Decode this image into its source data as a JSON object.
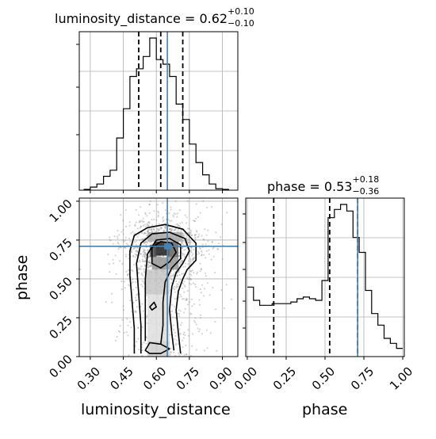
{
  "chart_data": [
    {
      "type": "histogram",
      "panel": "top-left",
      "parameter": "luminosity_distance",
      "title": {
        "main": "luminosity_distance = 0.62",
        "plus": "+0.10",
        "minus": "−0.10"
      },
      "xlim": [
        0.25,
        0.97
      ],
      "bins": [
        0.27,
        0.3,
        0.33,
        0.36,
        0.39,
        0.42,
        0.45,
        0.48,
        0.51,
        0.54,
        0.57,
        0.6,
        0.63,
        0.66,
        0.69,
        0.72,
        0.75,
        0.78,
        0.81,
        0.84,
        0.87,
        0.9,
        0.93
      ],
      "counts": [
        0.005,
        0.02,
        0.04,
        0.09,
        0.13,
        0.34,
        0.53,
        0.74,
        0.79,
        0.87,
        0.99,
        0.85,
        0.82,
        0.74,
        0.56,
        0.46,
        0.3,
        0.18,
        0.1,
        0.04,
        0.01,
        0.005
      ],
      "quantiles": [
        0.52,
        0.62,
        0.72
      ],
      "truth": 0.65,
      "grid": true
    },
    {
      "type": "histogram",
      "panel": "bottom-right",
      "parameter": "phase",
      "title": {
        "main": "phase = 0.53",
        "plus": "+0.18",
        "minus": "−0.36"
      },
      "xlim": [
        -0.01,
        1.01
      ],
      "xticks": [
        "0.00",
        "0.25",
        "0.50",
        "0.75",
        "1.00"
      ],
      "bins": [
        0.0,
        0.04,
        0.08,
        0.12,
        0.16,
        0.2,
        0.24,
        0.28,
        0.32,
        0.36,
        0.4,
        0.44,
        0.48,
        0.52,
        0.56,
        0.6,
        0.64,
        0.68,
        0.72,
        0.76,
        0.8,
        0.84,
        0.88,
        0.92,
        0.96,
        1.0
      ],
      "counts": [
        0.42,
        0.34,
        0.31,
        0.31,
        0.32,
        0.32,
        0.32,
        0.33,
        0.35,
        0.36,
        0.35,
        0.34,
        0.46,
        0.84,
        0.89,
        0.92,
        0.88,
        0.72,
        0.63,
        0.4,
        0.26,
        0.19,
        0.11,
        0.08,
        0.05
      ],
      "quantiles": [
        0.17,
        0.53,
        0.71
      ],
      "truth": 0.71,
      "grid": true
    },
    {
      "type": "scatter",
      "panel": "bottom-left",
      "x_parameter": "luminosity_distance",
      "y_parameter": "phase",
      "xlim": [
        0.25,
        0.97
      ],
      "ylim": [
        0.0,
        1.02
      ],
      "xticks": [
        "0.30",
        "0.45",
        "0.60",
        "0.75",
        "0.90"
      ],
      "yticks": [
        "0.00",
        "0.25",
        "0.50",
        "0.75",
        "1.00"
      ],
      "xlabel": "luminosity_distance",
      "ylabel": "phase",
      "truth": [
        0.65,
        0.71
      ],
      "grid": true,
      "contours": [
        [
          [
            0.5,
            0.02
          ],
          [
            0.5,
            0.18
          ],
          [
            0.49,
            0.35
          ],
          [
            0.48,
            0.52
          ],
          [
            0.48,
            0.68
          ],
          [
            0.5,
            0.78
          ],
          [
            0.56,
            0.83
          ],
          [
            0.64,
            0.85
          ],
          [
            0.72,
            0.82
          ],
          [
            0.78,
            0.73
          ],
          [
            0.78,
            0.62
          ],
          [
            0.74,
            0.56
          ],
          [
            0.72,
            0.5
          ],
          [
            0.7,
            0.42
          ],
          [
            0.69,
            0.3
          ],
          [
            0.7,
            0.15
          ],
          [
            0.71,
            0.02
          ]
        ],
        [
          [
            0.53,
            0.02
          ],
          [
            0.53,
            0.2
          ],
          [
            0.52,
            0.4
          ],
          [
            0.51,
            0.6
          ],
          [
            0.53,
            0.73
          ],
          [
            0.58,
            0.79
          ],
          [
            0.66,
            0.8
          ],
          [
            0.73,
            0.76
          ],
          [
            0.75,
            0.68
          ],
          [
            0.72,
            0.6
          ],
          [
            0.69,
            0.54
          ],
          [
            0.67,
            0.45
          ],
          [
            0.66,
            0.3
          ],
          [
            0.67,
            0.15
          ],
          [
            0.68,
            0.04
          ]
        ],
        [
          [
            0.55,
            0.1
          ],
          [
            0.55,
            0.3
          ],
          [
            0.55,
            0.5
          ],
          [
            0.56,
            0.66
          ],
          [
            0.6,
            0.75
          ],
          [
            0.66,
            0.76
          ],
          [
            0.71,
            0.72
          ],
          [
            0.71,
            0.63
          ],
          [
            0.67,
            0.57
          ],
          [
            0.64,
            0.48
          ],
          [
            0.63,
            0.35
          ],
          [
            0.63,
            0.2
          ],
          [
            0.62,
            0.08
          ]
        ],
        [
          [
            0.58,
            0.6
          ],
          [
            0.58,
            0.7
          ],
          [
            0.62,
            0.74
          ],
          [
            0.67,
            0.73
          ],
          [
            0.69,
            0.67
          ],
          [
            0.66,
            0.61
          ],
          [
            0.62,
            0.57
          ]
        ],
        [
          [
            0.55,
            0.04
          ],
          [
            0.57,
            0.09
          ],
          [
            0.62,
            0.08
          ],
          [
            0.66,
            0.05
          ],
          [
            0.62,
            0.02
          ],
          [
            0.57,
            0.02
          ]
        ],
        [
          [
            0.57,
            0.32
          ],
          [
            0.59,
            0.35
          ],
          [
            0.6,
            0.32
          ],
          [
            0.58,
            0.3
          ]
        ]
      ]
    }
  ]
}
